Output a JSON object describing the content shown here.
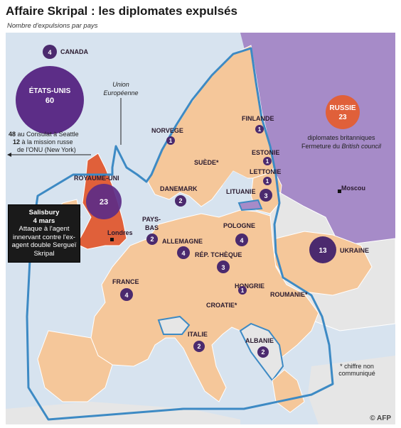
{
  "title": "Affaire Skripal : les diplomates expulsés",
  "subtitle": "Nombre d'expulsions par pays",
  "colors": {
    "sea": "#d7e3ef",
    "eu_country": "#f5c79a",
    "non_eu": "#e6e6e6",
    "russia": "#a68bc8",
    "bubble": "#4b2a6e",
    "bubble_large": "#5c2d87",
    "border_line": "#3d8ac4"
  },
  "eu_label": "Union\nEuropéenne",
  "usa_note_line1_num": "48",
  "usa_note_line1": "au Consulat à Seattle",
  "usa_note_line2_num": "12",
  "usa_note_line2": "à la mission russe",
  "usa_note_line3": "de l'ONU (New York)",
  "countries": [
    {
      "id": "canada",
      "name": "CANADA",
      "value": "4"
    },
    {
      "id": "usa",
      "name": "ÉTATS-UNIS",
      "value": "60"
    },
    {
      "id": "uk",
      "name": "ROYAUME-UNI",
      "value": "23"
    },
    {
      "id": "norway",
      "name": "NORVEGE",
      "value": "1"
    },
    {
      "id": "sweden",
      "name": "SUÈDE*",
      "value": ""
    },
    {
      "id": "finland",
      "name": "FINLANDE",
      "value": "1"
    },
    {
      "id": "estonia",
      "name": "ESTONIE",
      "value": "1"
    },
    {
      "id": "latvia",
      "name": "LETTONIE",
      "value": "1"
    },
    {
      "id": "lithuania",
      "name": "LITUANIE",
      "value": "3"
    },
    {
      "id": "denmark",
      "name": "DANEMARK",
      "value": "2"
    },
    {
      "id": "netherlands",
      "name": "PAYS-\nBAS",
      "value": "2"
    },
    {
      "id": "germany",
      "name": "ALLEMAGNE",
      "value": "4"
    },
    {
      "id": "poland",
      "name": "POLOGNE",
      "value": "4"
    },
    {
      "id": "czech",
      "name": "RÉP. TCHÈQUE",
      "value": "3"
    },
    {
      "id": "ukraine",
      "name": "UKRAINE",
      "value": "13"
    },
    {
      "id": "france",
      "name": "FRANCE",
      "value": "4"
    },
    {
      "id": "hungary",
      "name": "HONGRIE",
      "value": "1"
    },
    {
      "id": "romania",
      "name": "ROUMANIE*",
      "value": ""
    },
    {
      "id": "croatia",
      "name": "CROATIE*",
      "value": ""
    },
    {
      "id": "italy",
      "name": "ITALIE",
      "value": "2"
    },
    {
      "id": "albania",
      "name": "ALBANIE",
      "value": "2"
    },
    {
      "id": "russia",
      "name": "RUSSIE",
      "value": "23"
    }
  ],
  "russia_note_line1": "diplomates britanniques",
  "russia_note_line2_prefix": "Fermeture du",
  "russia_note_line2_em": "British council",
  "moscow_label": "Moscou",
  "london_label": "Londres",
  "salisbury_line1": "Salisbury",
  "salisbury_line2": "4 mars",
  "salisbury_body": "Attaque à l'agent innervant contre l'ex-agent double Sergueï Skripal",
  "footnote": "* chiffre non\ncommuniqué",
  "credit": "© AFP"
}
